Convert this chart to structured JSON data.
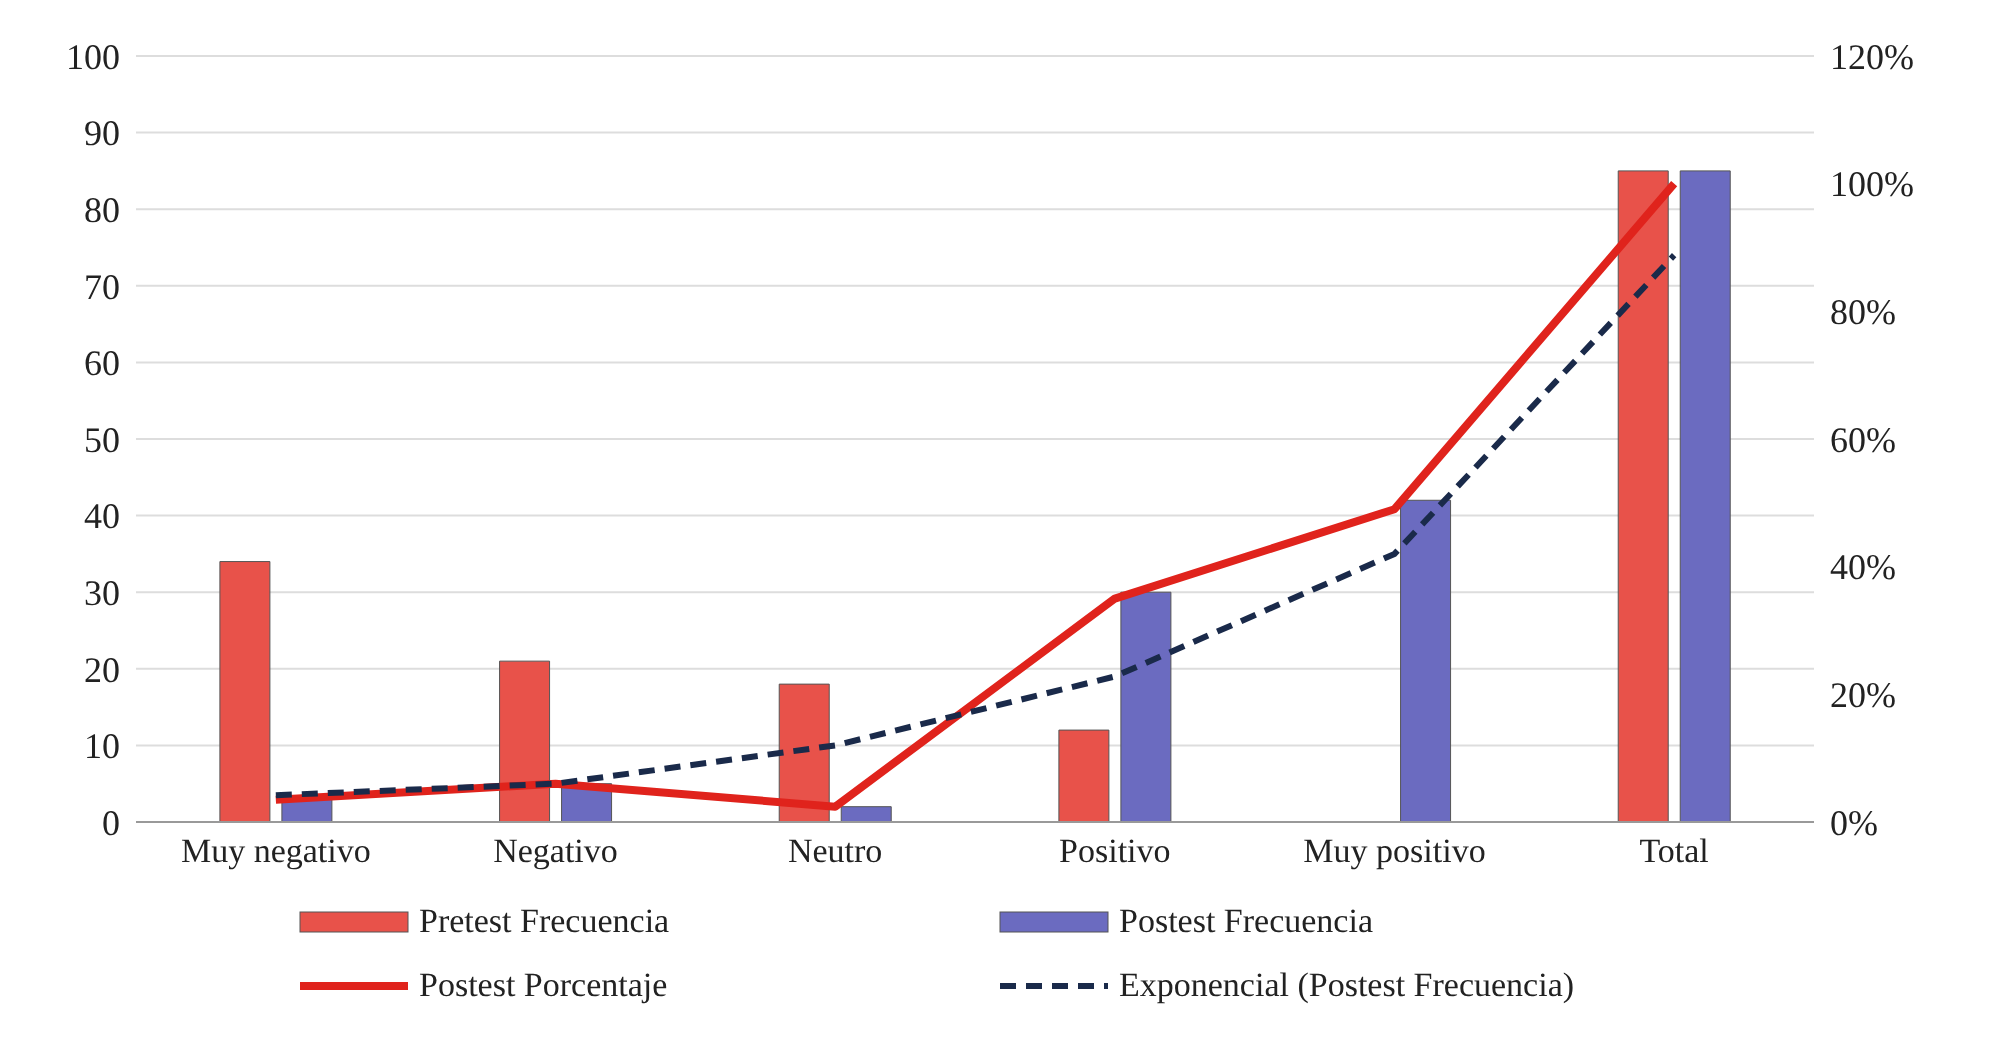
{
  "chart_data": {
    "type": "bar",
    "categories": [
      "Muy negativo",
      "Negativo",
      "Neutro",
      "Positivo",
      "Muy positivo",
      "Total"
    ],
    "series": [
      {
        "name": "Pretest Frecuencia",
        "color": "#e8524a",
        "values": [
          34,
          21,
          18,
          12,
          0,
          85
        ]
      },
      {
        "name": "Postest Frecuencia",
        "color": "#6b6bc0",
        "values": [
          3,
          5,
          2,
          30,
          42,
          85
        ]
      },
      {
        "name": "Postest Porcentaje",
        "type": "line",
        "axis": "y2",
        "color": "#e0231c",
        "line_style": "solid",
        "values": [
          3.5,
          6,
          2.4,
          35,
          49,
          100
        ]
      },
      {
        "name": "Exponencial (Postest Frecuencia)",
        "type": "line",
        "color": "#1a2a4a",
        "line_style": "dashed",
        "values": [
          3.5,
          5,
          10,
          19,
          35,
          74
        ]
      }
    ],
    "ylim": [
      0,
      100
    ],
    "yticks": [
      0,
      10,
      20,
      30,
      40,
      50,
      60,
      70,
      80,
      90,
      100
    ],
    "y2lim": [
      0,
      120
    ],
    "y2ticks": [
      {
        "value": 0,
        "label": "0%"
      },
      {
        "value": 20,
        "label": "20%"
      },
      {
        "value": 40,
        "label": "40%"
      },
      {
        "value": 60,
        "label": "60%"
      },
      {
        "value": 80,
        "label": "80%"
      },
      {
        "value": 100,
        "label": "100%"
      },
      {
        "value": 120,
        "label": "120%"
      }
    ],
    "grid": "y",
    "legend": "bottom",
    "marker": "none"
  }
}
